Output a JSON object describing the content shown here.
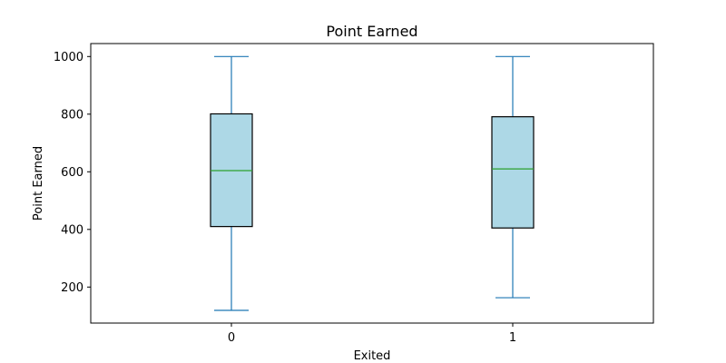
{
  "chart_data": {
    "type": "box",
    "title": "Point Earned",
    "xlabel": "Exited",
    "ylabel": "Point Earned",
    "categories": [
      "0",
      "1"
    ],
    "boxes": [
      {
        "category": "0",
        "whisker_low": 119,
        "q1": 410,
        "median": 604,
        "q3": 801,
        "whisker_high": 1000
      },
      {
        "category": "1",
        "whisker_low": 163,
        "q1": 405,
        "median": 610,
        "q3": 791,
        "whisker_high": 1000
      }
    ],
    "ylim": [
      75,
      1045
    ],
    "yticks": [
      200,
      400,
      600,
      800,
      1000
    ],
    "grid": false,
    "colors": {
      "box_fill": "#add8e6",
      "box_edge": "#000000",
      "whisker": "#1f77b4",
      "median": "#2ca02c",
      "axes": "#000000"
    }
  }
}
